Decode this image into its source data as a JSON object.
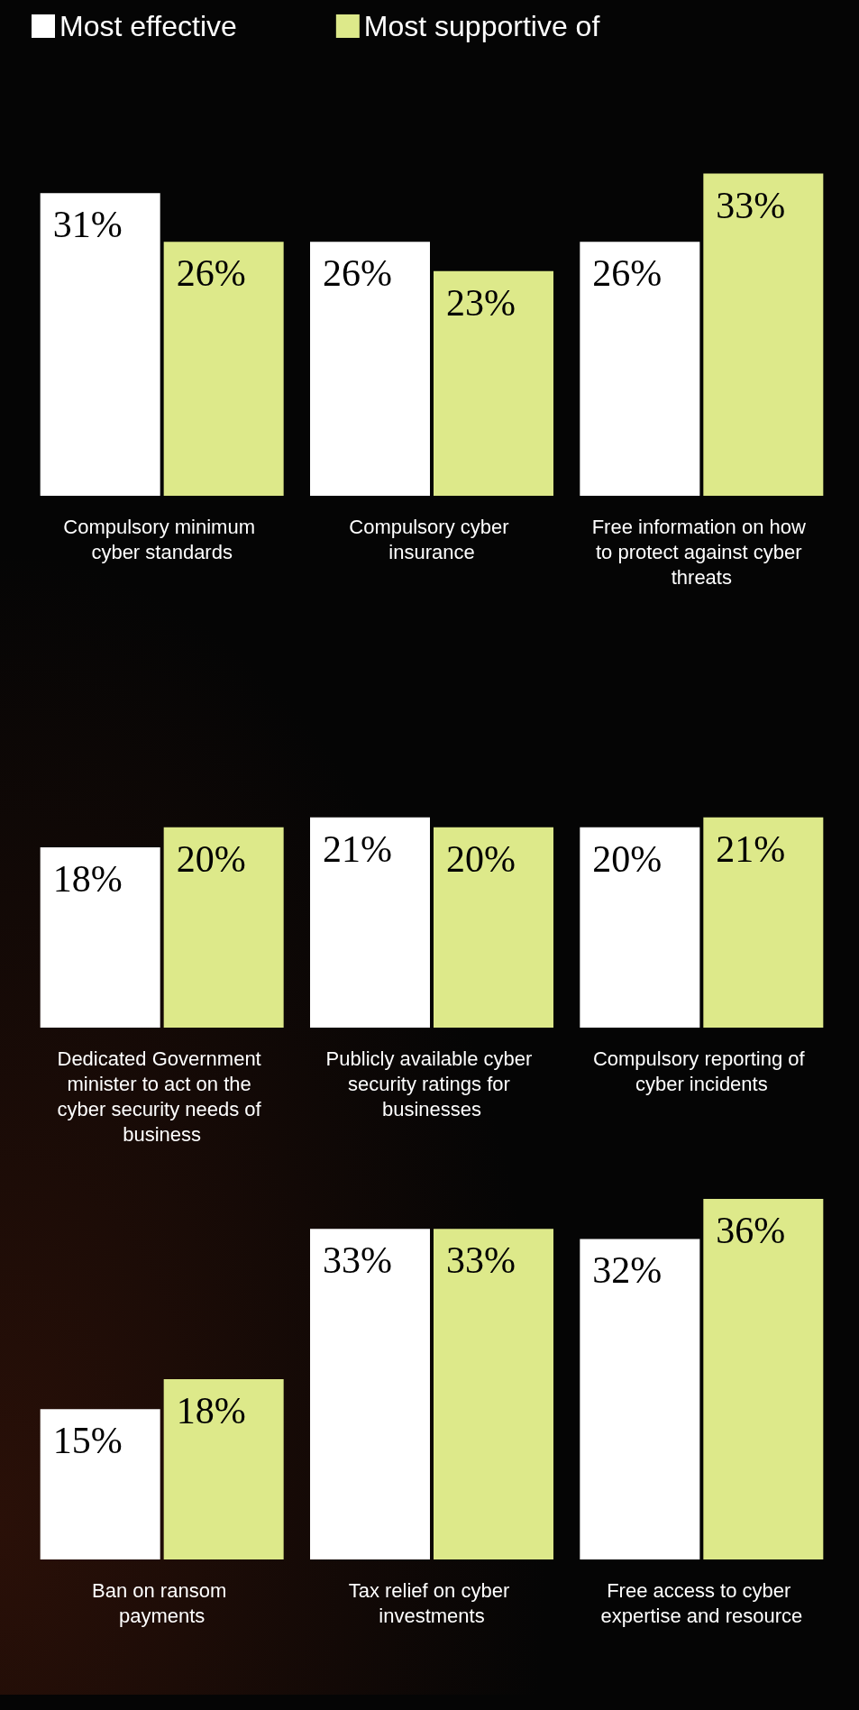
{
  "chart_data": [
    {
      "type": "bar",
      "legend": "top left",
      "categories": [
        "Compulsory minimum cyber standards",
        "Compulsory cyber insurance",
        "Free information on how to protect against cyber threats"
      ],
      "series": [
        {
          "name": "Most effective",
          "color": "#ffffff",
          "values": [
            31,
            26,
            26
          ],
          "value_labels": [
            "31%",
            "26%",
            "26%"
          ]
        },
        {
          "name": "Most supportive of",
          "color": "#dde98a",
          "values": [
            26,
            23,
            33
          ],
          "value_labels": [
            "26%",
            "23%",
            "33%"
          ]
        }
      ]
    },
    {
      "type": "bar",
      "categories": [
        "Dedicated Government minister to act on the cyber security needs of business",
        "Publicly available cyber security ratings for businesses",
        "Compulsory reporting of cyber incidents"
      ],
      "series": [
        {
          "color": "#ffffff",
          "values": [
            18,
            21,
            20
          ],
          "value_labels": [
            "18%",
            "21%",
            "20%"
          ]
        },
        {
          "color": "#dde98a",
          "values": [
            20,
            20,
            21
          ],
          "value_labels": [
            "20%",
            "20%",
            "21%"
          ]
        }
      ]
    },
    {
      "type": "bar",
      "categories": [
        "Ban on ransom payments",
        "Tax relief on cyber investments",
        "Free access to cyber expertise and resource"
      ],
      "series": [
        {
          "color": "#ffffff",
          "values": [
            15,
            33,
            32
          ],
          "value_labels": [
            "15%",
            "33%",
            "32%"
          ]
        },
        {
          "color": "#dde98a",
          "values": [
            18,
            33,
            36
          ],
          "value_labels": [
            "18%",
            "33%",
            "36%"
          ]
        }
      ]
    }
  ]
}
